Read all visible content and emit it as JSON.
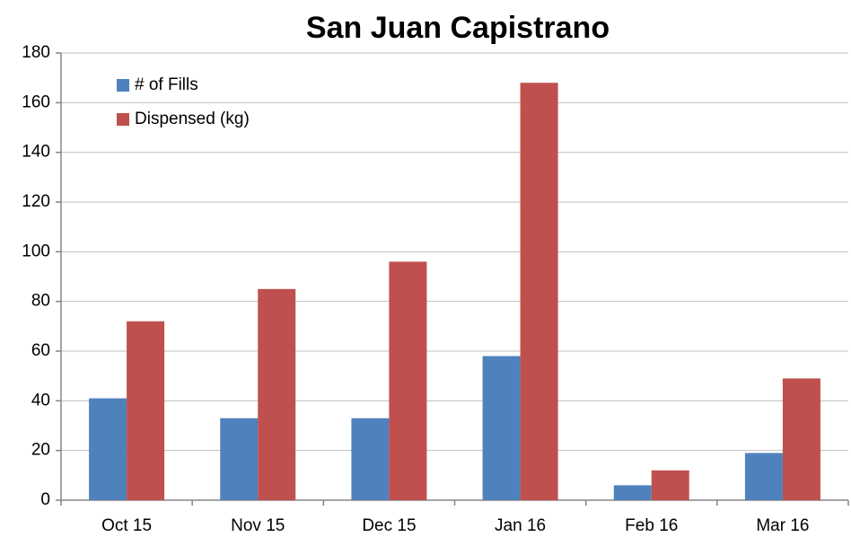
{
  "chart_data": {
    "type": "bar",
    "title": "San Juan Capistrano",
    "categories": [
      "Oct 15",
      "Nov 15",
      "Dec 15",
      "Jan 16",
      "Feb 16",
      "Mar 16"
    ],
    "series": [
      {
        "name": "# of Fills",
        "color": "#4f81bd",
        "values": [
          41,
          33,
          33,
          58,
          6,
          19
        ]
      },
      {
        "name": "Dispensed (kg)",
        "color": "#c0504d",
        "values": [
          72,
          85,
          96,
          168,
          12,
          49
        ]
      }
    ],
    "ylim": [
      0,
      180
    ],
    "yticks": [
      0,
      20,
      40,
      60,
      80,
      100,
      120,
      140,
      160,
      180
    ],
    "grid": true,
    "legend": "top-left"
  }
}
